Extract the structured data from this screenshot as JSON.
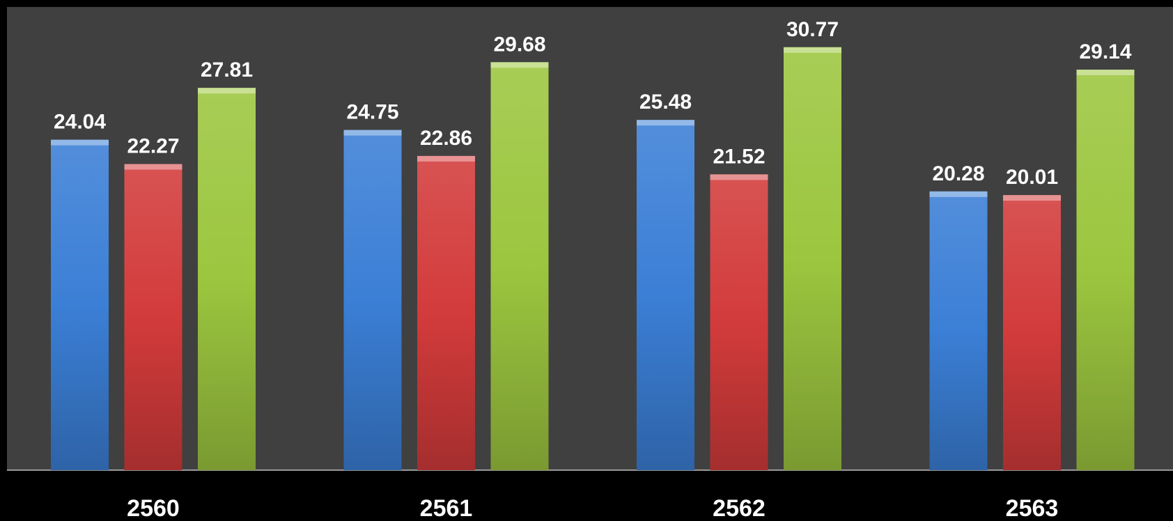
{
  "chart_data": {
    "type": "bar",
    "categories": [
      "2560",
      "2561",
      "2562",
      "2563"
    ],
    "series": [
      {
        "values": [
          24.04,
          24.75,
          25.48,
          20.28
        ],
        "color": "#3b7fd6"
      },
      {
        "values": [
          22.27,
          22.86,
          21.52,
          20.01
        ],
        "color": "#d33b3b"
      },
      {
        "values": [
          27.81,
          29.68,
          30.77,
          29.14
        ],
        "color": "#9cc63f"
      }
    ],
    "value_labels": [
      [
        "24.04",
        "24.75",
        "25.48",
        "20.28"
      ],
      [
        "22.27",
        "22.86",
        "21.52",
        "20.01"
      ],
      [
        "27.81",
        "29.68",
        "30.77",
        "29.14"
      ]
    ],
    "ylim": [
      0,
      33.7
    ],
    "grid": false,
    "legend": "none",
    "plot_background": "#404040",
    "page_background": "#000000"
  }
}
